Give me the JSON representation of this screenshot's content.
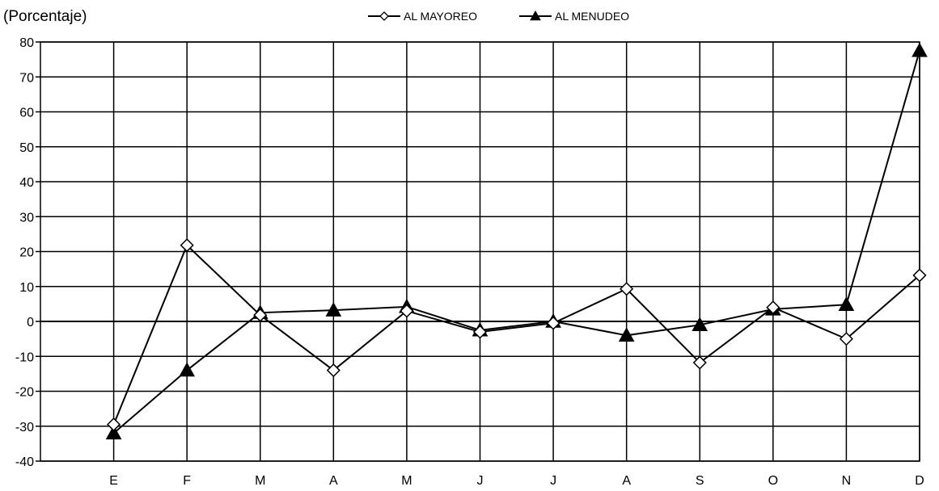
{
  "chart_data": {
    "type": "line",
    "ylabel": "(Porcentaje)",
    "categories": [
      "E",
      "F",
      "M",
      "A",
      "M",
      "J",
      "J",
      "A",
      "S",
      "O",
      "N",
      "D"
    ],
    "ylim": [
      -40,
      80
    ],
    "yticks": [
      -40,
      -30,
      -20,
      -10,
      0,
      10,
      20,
      30,
      40,
      50,
      60,
      70,
      80
    ],
    "grid": true,
    "legend": "top-center",
    "series": [
      {
        "name": "AL MAYOREO",
        "marker": "diamond-open",
        "values": [
          -29.5,
          21.8,
          1.8,
          -14.0,
          3.0,
          -3.0,
          -0.5,
          9.3,
          -11.8,
          4.0,
          -5.0,
          13.2
        ]
      },
      {
        "name": "AL MENUDEO",
        "marker": "triangle-filled",
        "values": [
          -32.0,
          -14.0,
          2.5,
          3.2,
          4.2,
          -2.5,
          0.0,
          -4.0,
          -1.0,
          3.5,
          4.8,
          77.5
        ]
      }
    ]
  }
}
